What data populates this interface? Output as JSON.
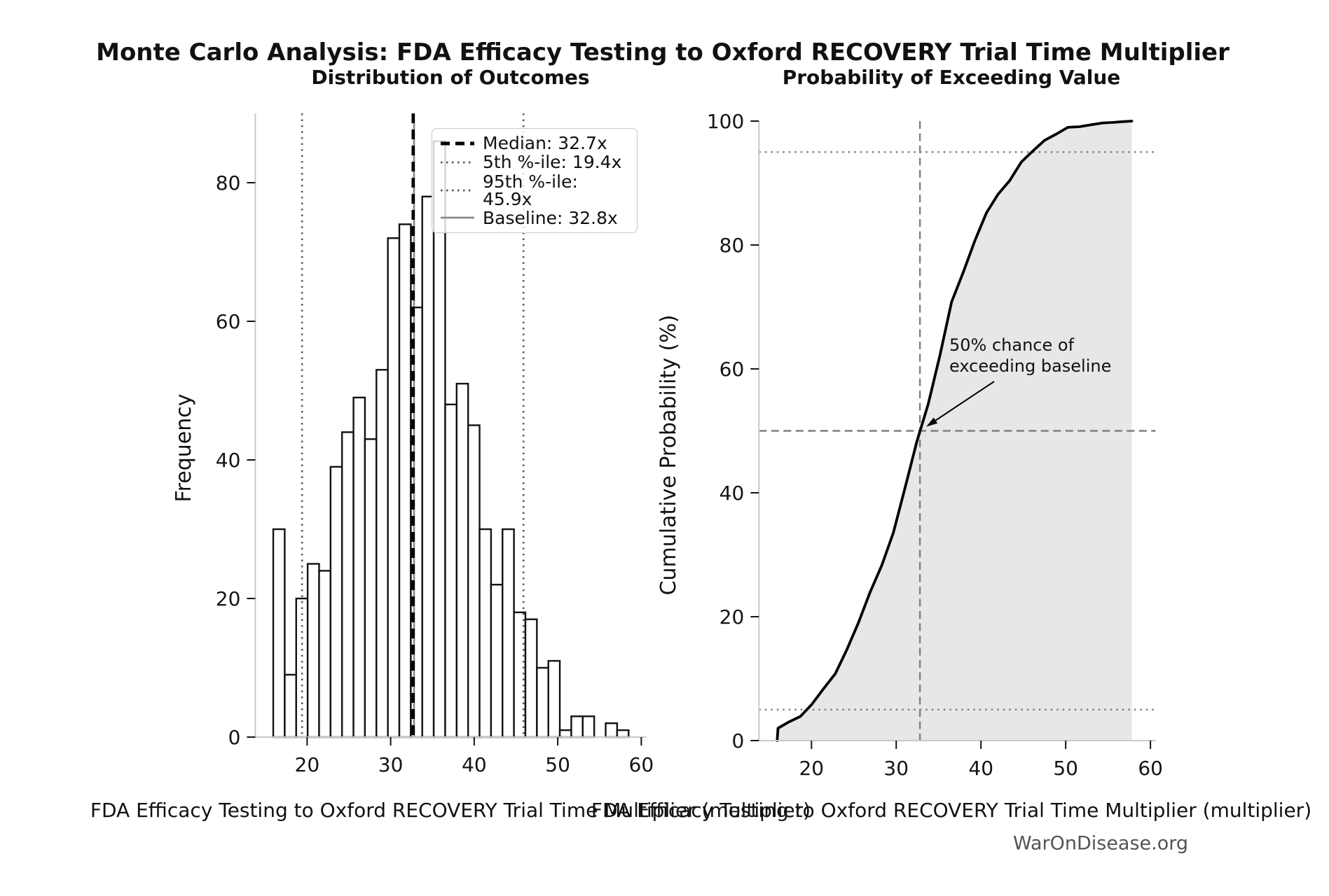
{
  "figure": {
    "suptitle": "Monte Carlo Analysis: FDA Efficacy Testing to Oxford RECOVERY Trial Time Multiplier",
    "watermark": "WarOnDisease.org"
  },
  "colors": {
    "median": "#000000",
    "percentile": "#5a5a5a",
    "baseline": "#888888",
    "ref_gray": "#7f7f7f",
    "cdf_line": "#000000",
    "cdf_fill": "#e7e7e7",
    "spine": "#c9c9c9",
    "tick": "#141414",
    "bar_edge": "#111111",
    "bar_fill": "#ffffff"
  },
  "chart_data": [
    {
      "type": "bar",
      "title": "Distribution of Outcomes",
      "xlabel": "FDA Efficacy Testing to Oxford RECOVERY Trial Time Multiplier (multiplier)",
      "ylabel": "Frequency",
      "bin_start": 15.95,
      "bin_width": 1.372,
      "values": [
        30,
        9,
        20,
        25,
        24,
        39,
        44,
        49,
        43,
        53,
        72,
        74,
        62,
        78,
        86,
        48,
        51,
        45,
        30,
        22,
        30,
        18,
        17,
        10,
        11,
        1,
        3,
        3,
        0,
        2,
        1
      ],
      "xticks": [
        20,
        30,
        40,
        50,
        60
      ],
      "yticks": [
        0,
        20,
        40,
        60,
        80
      ],
      "xlim": [
        13.8,
        60.6
      ],
      "ylim": [
        0,
        90
      ],
      "grid": false,
      "legend_position": "upper right",
      "ref_lines": [
        {
          "value": 32.7,
          "style": "dashed",
          "color_key": "median",
          "label": "Median: 32.7x"
        },
        {
          "value": 19.4,
          "style": "dotted",
          "color_key": "percentile",
          "label": "5th %-ile: 19.4x"
        },
        {
          "value": 45.9,
          "style": "dotted",
          "color_key": "percentile",
          "label": "95th %-ile: 45.9x"
        },
        {
          "value": 32.8,
          "style": "solid",
          "color_key": "baseline",
          "label": "Baseline: 32.8x"
        }
      ]
    },
    {
      "type": "line",
      "title": "Probability of Exceeding Value",
      "xlabel": "FDA Efficacy Testing to Oxford RECOVERY Trial Time Multiplier (multiplier)",
      "ylabel": "Cumulative Probability (%)",
      "x": [
        15.95,
        16.05,
        17.32,
        18.69,
        20.07,
        21.44,
        22.81,
        24.18,
        25.56,
        26.93,
        28.3,
        29.67,
        31.04,
        32.42,
        33.79,
        35.16,
        36.53,
        37.91,
        39.28,
        40.65,
        42.02,
        43.39,
        44.77,
        46.14,
        47.51,
        48.88,
        50.26,
        51.63,
        53.0,
        54.37,
        55.75,
        56.6,
        57.8
      ],
      "y": [
        0,
        2,
        3,
        3.9,
        5.9,
        8.4,
        10.8,
        14.7,
        19.1,
        24.0,
        28.3,
        33.6,
        40.8,
        48.2,
        54.4,
        62.2,
        70.8,
        75.6,
        80.7,
        85.2,
        88.2,
        90.4,
        93.4,
        95.2,
        96.9,
        97.9,
        99.0,
        99.1,
        99.4,
        99.7,
        99.8,
        99.9,
        100
      ],
      "xticks": [
        20,
        30,
        40,
        50,
        60
      ],
      "yticks": [
        0,
        20,
        40,
        60,
        80,
        100
      ],
      "xlim": [
        13.8,
        60.6
      ],
      "ylim": [
        0,
        100
      ],
      "fill_under": true,
      "hlines": [
        {
          "value": 5,
          "style": "dotted"
        },
        {
          "value": 50,
          "style": "dashed"
        },
        {
          "value": 95,
          "style": "dotted"
        }
      ],
      "vlines": [
        {
          "value": 32.8,
          "style": "dashed"
        }
      ],
      "annotation": {
        "line1": "50% chance of",
        "line2": "exceeding baseline",
        "points_to": {
          "x": 32.8,
          "y": 50
        }
      }
    }
  ]
}
